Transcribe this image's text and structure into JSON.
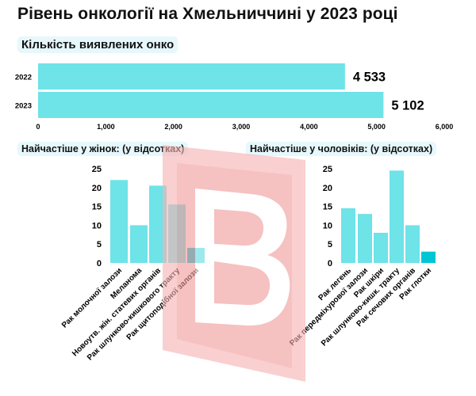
{
  "title": "Рівень онкології на Хмельниччині у 2023 році",
  "colors": {
    "bar": "#6ee3e8",
    "bar_small": "#00c6d4",
    "pill_bg": "#e6f8fb",
    "watermark": "#f5a5a5"
  },
  "watermark_icon": "letter-b-logo-icon",
  "chart_data": [
    {
      "type": "bar",
      "orientation": "horizontal",
      "title": "Кількість виявлених онко",
      "categories": [
        "2022",
        "2023"
      ],
      "values": [
        4533,
        5102
      ],
      "value_labels": [
        "4 533",
        "5 102"
      ],
      "xlim": [
        0,
        6000
      ],
      "xticks": [
        "0",
        "1,000",
        "2,000",
        "3,000",
        "4,000",
        "5,000",
        "6,000"
      ],
      "grid": false
    },
    {
      "type": "bar",
      "title": "Найчастіше у жінок: (у відсотках)",
      "categories": [
        "Рак молочної залози",
        "Меланома",
        "Новоутв. жін. статевих органів",
        "Рак шлунково-кишкового тракту",
        "Рак щитоподібної залози"
      ],
      "values": [
        22,
        10,
        20.5,
        15.5,
        4
      ],
      "ylim": [
        0,
        25
      ],
      "yticks": [
        "0",
        "5",
        "10",
        "15",
        "20",
        "25"
      ],
      "grid": false
    },
    {
      "type": "bar",
      "title": "Найчастіше у чоловіків: (у відсотках)",
      "categories": [
        "Рак легень",
        "Рак передміхурової залози",
        "Рак шкіри",
        "Рак шлунково-кишк. тракту",
        "Рак сечових органів",
        "Рак глотки"
      ],
      "values": [
        14.5,
        13,
        8,
        24.5,
        10,
        3
      ],
      "ylim": [
        0,
        25
      ],
      "yticks": [
        "0",
        "5",
        "10",
        "15",
        "20",
        "25"
      ],
      "grid": false
    }
  ]
}
